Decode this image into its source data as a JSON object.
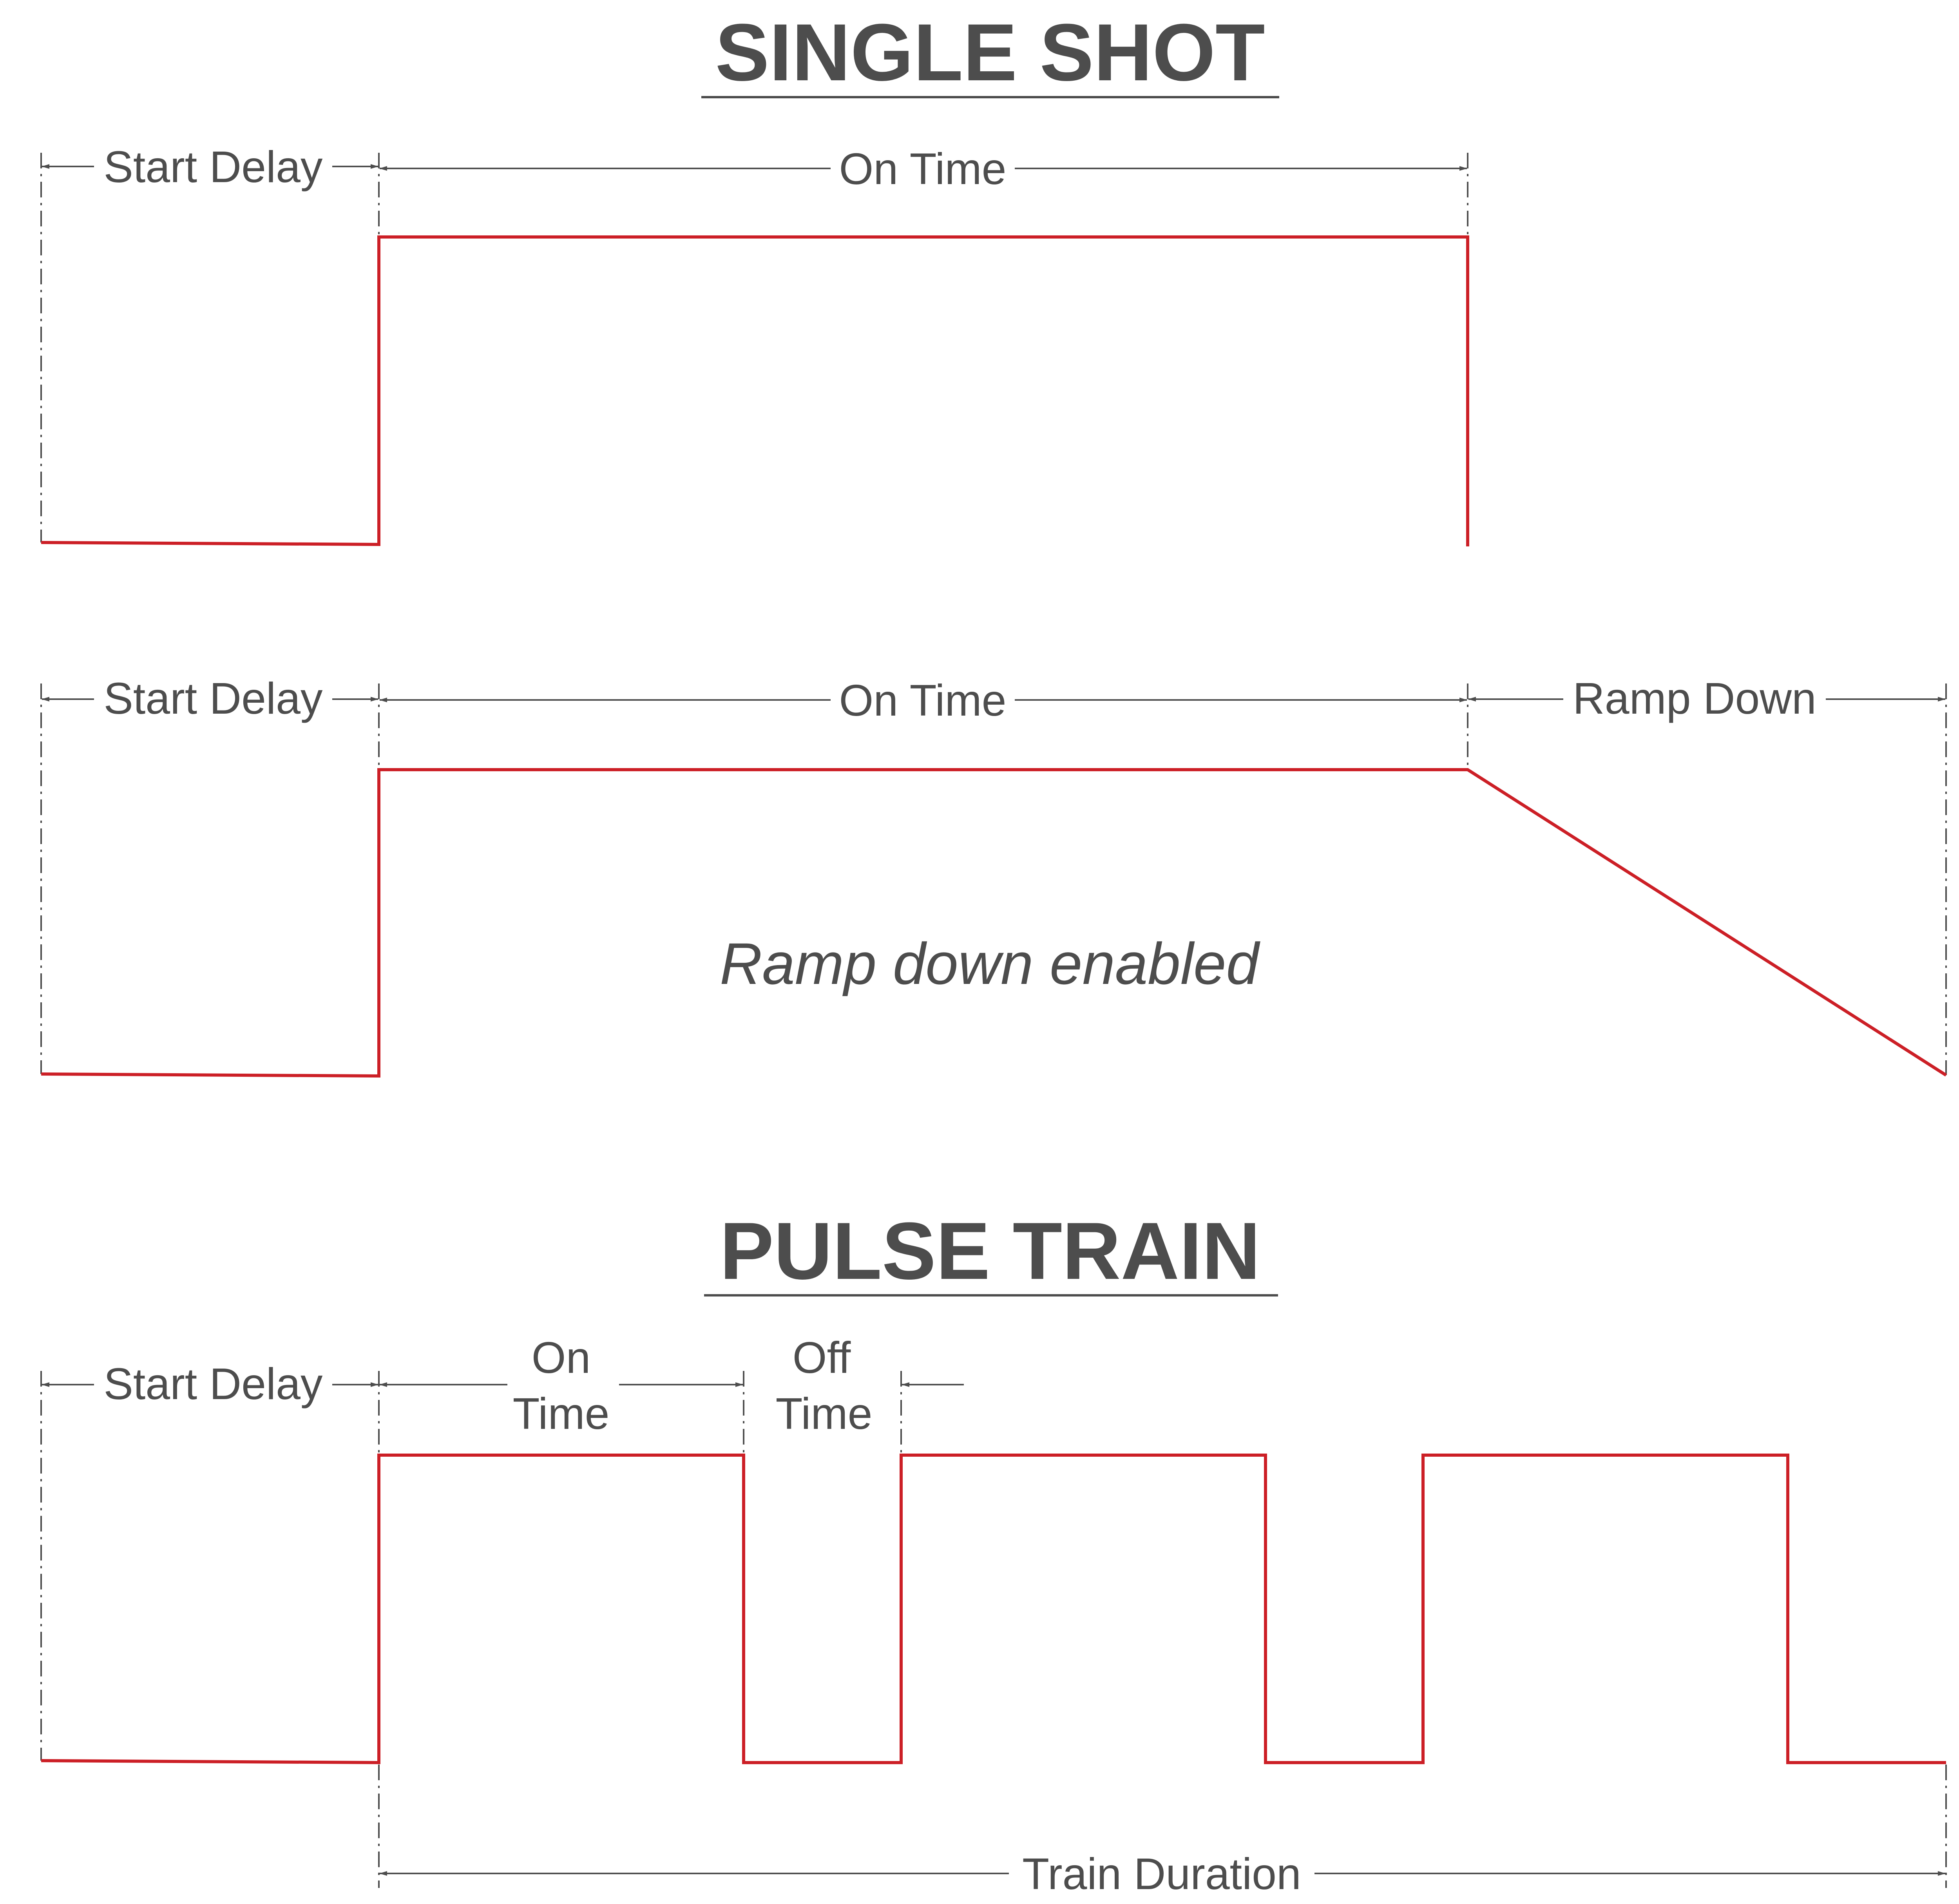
{
  "colors": {
    "signal": "#cc1f26",
    "annotation": "#4d4d4d",
    "background": "#ffffff"
  },
  "single_shot": {
    "title": "SINGLE SHOT",
    "basic": {
      "start_delay": "Start Delay",
      "on_time": "On Time"
    },
    "ramp": {
      "start_delay": "Start Delay",
      "on_time": "On Time",
      "ramp_down": "Ramp Down",
      "note": "Ramp down enabled"
    }
  },
  "pulse_train": {
    "title": "PULSE TRAIN",
    "start_delay": "Start Delay",
    "on_time": [
      "On",
      "Time"
    ],
    "off_time": [
      "Off",
      "Time"
    ],
    "train_duration": "Train Duration"
  }
}
